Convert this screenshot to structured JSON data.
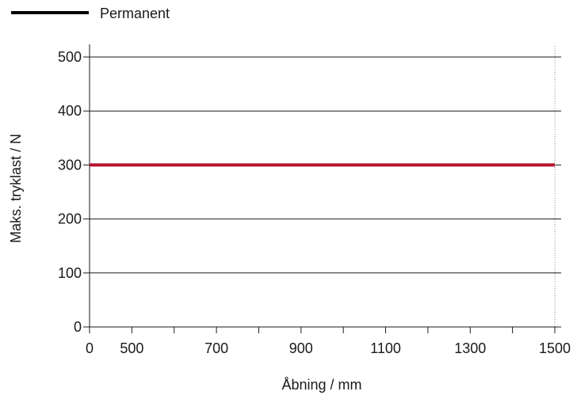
{
  "chart_data": {
    "type": "line",
    "xlabel": "Åbning / mm",
    "ylabel": "Maks. tryklast / N",
    "x_ticks": [
      {
        "label": "0",
        "pos": 0
      },
      {
        "label": "500",
        "pos": 1
      },
      {
        "label": "700",
        "pos": 3
      },
      {
        "label": "900",
        "pos": 5
      },
      {
        "label": "1100",
        "pos": 7
      },
      {
        "label": "1300",
        "pos": 9
      },
      {
        "label": "1500",
        "pos": 11
      }
    ],
    "x_minor_ticks": [
      1,
      2,
      3,
      4,
      5,
      6,
      7,
      8,
      9,
      10,
      11
    ],
    "y_ticks": [
      0,
      100,
      200,
      300,
      400,
      500
    ],
    "ylim": [
      0,
      500
    ],
    "grid": "horizontal",
    "legend_position": "top-left",
    "series": [
      {
        "name": "Permanent",
        "color": "#b5122e",
        "x": [
          0,
          1500
        ],
        "y": [
          300,
          300
        ]
      }
    ],
    "legend_line_color": "#000000"
  }
}
